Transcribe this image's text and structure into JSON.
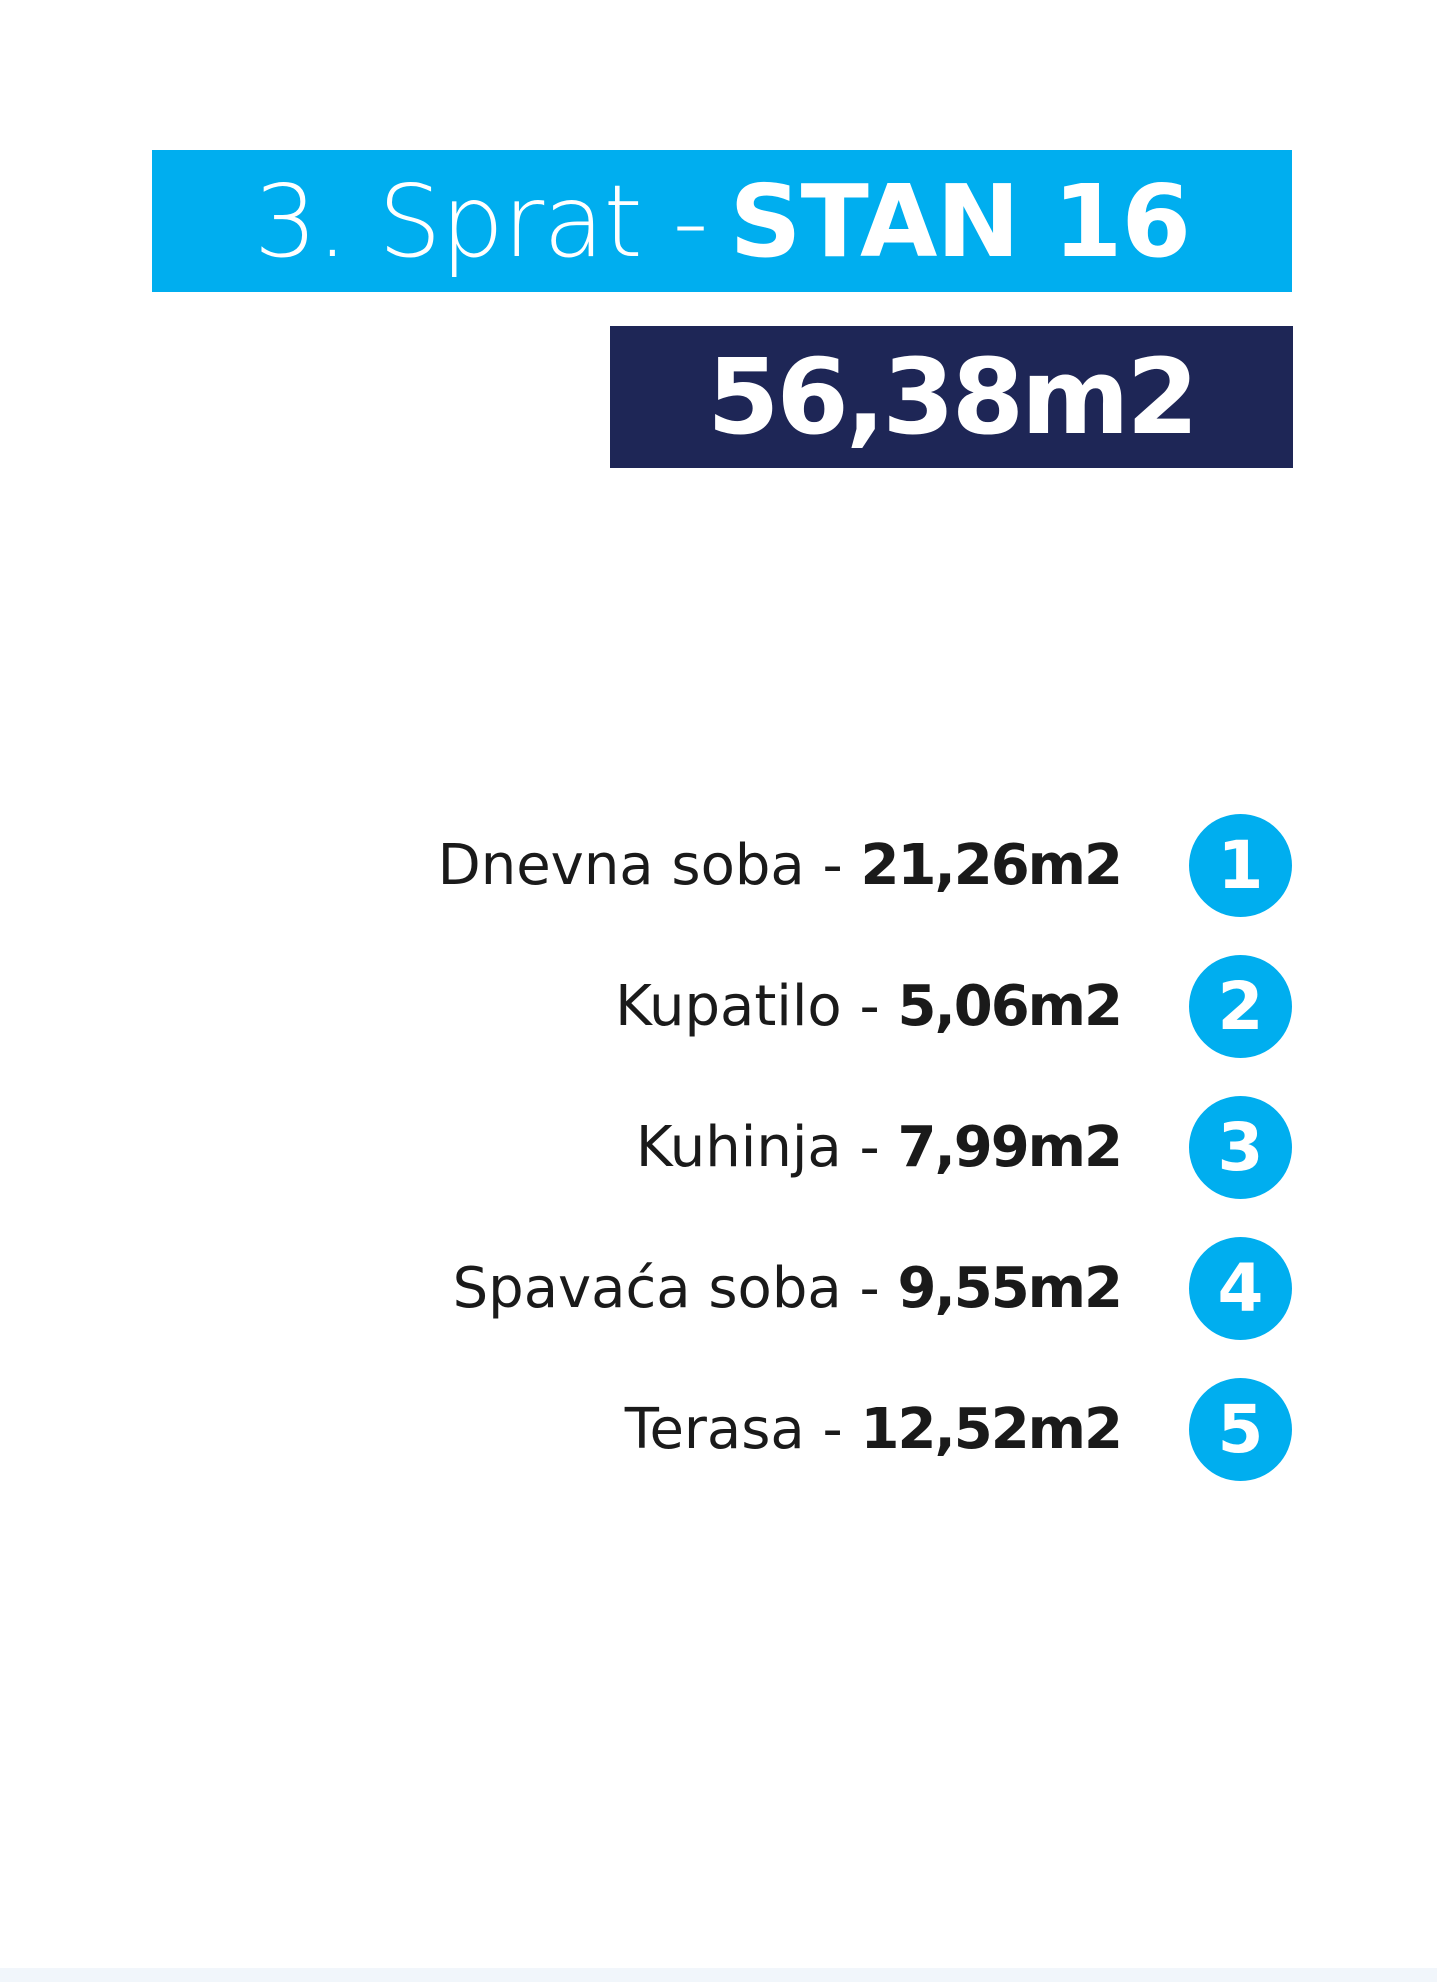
{
  "header": {
    "floor": "3. Sprat -",
    "unit": "STAN 16",
    "total_area": "56,38m2"
  },
  "colors": {
    "accent": "#00aeef",
    "dark": "#1e2656"
  },
  "rooms": [
    {
      "number": "1",
      "name": "Dnevna soba -",
      "area": "21,26m2"
    },
    {
      "number": "2",
      "name": "Kupatilo -",
      "area": "5,06m2"
    },
    {
      "number": "3",
      "name": "Kuhinja -",
      "area": "7,99m2"
    },
    {
      "number": "4",
      "name": "Spavaća soba -",
      "area": "9,55m2"
    },
    {
      "number": "5",
      "name": "Terasa -",
      "area": "12,52m2"
    }
  ]
}
